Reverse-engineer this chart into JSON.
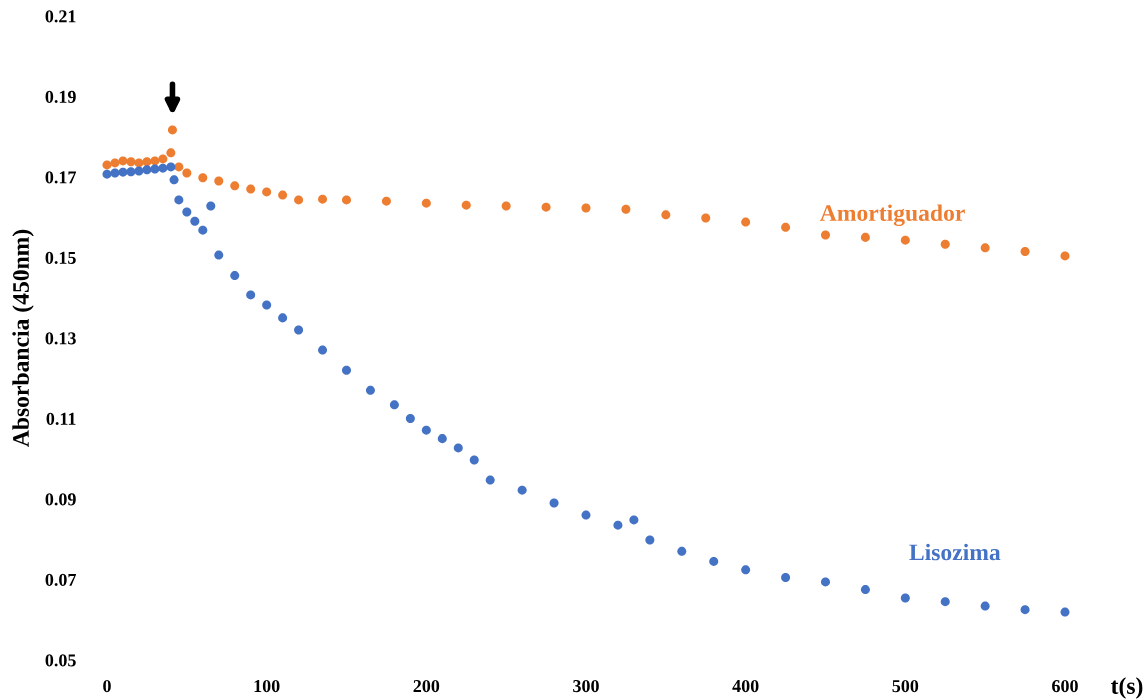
{
  "chart_data": {
    "type": "scatter",
    "xlabel": "t(s)",
    "ylabel": "Absorbancia (450nm)",
    "xlim": [
      0,
      600
    ],
    "xticks": [
      0,
      100,
      200,
      300,
      400,
      500,
      600
    ],
    "ylim": [
      0.05,
      0.21
    ],
    "yticks": [
      {
        "value": 0.05,
        "label": "0.05"
      },
      {
        "value": 0.07,
        "label": "0.07"
      },
      {
        "value": 0.09,
        "label": "0.09"
      },
      {
        "value": 0.11,
        "label": "0.11"
      },
      {
        "value": 0.13,
        "label": "0.13"
      },
      {
        "value": 0.15,
        "label": "0.15"
      },
      {
        "value": 0.17,
        "label": "0.17"
      },
      {
        "value": 0.19,
        "label": "0.19"
      },
      {
        "value": 0.21,
        "label": "0.21"
      }
    ],
    "grid": false,
    "legend": false,
    "marker": "circle",
    "series": [
      {
        "name": "Amortiguador",
        "color": "#ed7d31",
        "x": [
          0,
          5,
          10,
          15,
          20,
          25,
          30,
          35,
          40,
          41,
          45,
          50,
          60,
          70,
          80,
          90,
          100,
          110,
          120,
          135,
          150,
          175,
          200,
          225,
          250,
          275,
          300,
          325,
          350,
          375,
          400,
          425,
          450,
          475,
          500,
          525,
          550,
          575,
          600
        ],
        "values": [
          0.173,
          0.1735,
          0.174,
          0.1738,
          0.1735,
          0.1738,
          0.174,
          0.1745,
          0.176,
          0.1817,
          0.1725,
          0.171,
          0.1698,
          0.169,
          0.1678,
          0.167,
          0.1663,
          0.1655,
          0.1643,
          0.1645,
          0.1643,
          0.164,
          0.1635,
          0.163,
          0.1628,
          0.1625,
          0.1623,
          0.162,
          0.1606,
          0.1598,
          0.1588,
          0.1575,
          0.1556,
          0.155,
          0.1543,
          0.1533,
          0.1524,
          0.1515,
          0.1504
        ]
      },
      {
        "name": "Lisozima",
        "color": "#4472c4",
        "x": [
          0,
          5,
          10,
          15,
          20,
          25,
          30,
          35,
          40,
          42,
          45,
          50,
          55,
          60,
          65,
          70,
          80,
          90,
          100,
          110,
          120,
          135,
          150,
          165,
          180,
          190,
          200,
          210,
          220,
          230,
          240,
          260,
          280,
          300,
          320,
          330,
          340,
          360,
          380,
          400,
          425,
          450,
          475,
          500,
          525,
          550,
          575,
          600
        ],
        "values": [
          0.1707,
          0.171,
          0.1712,
          0.1713,
          0.1715,
          0.1718,
          0.172,
          0.1722,
          0.1725,
          0.1693,
          0.1643,
          0.1613,
          0.159,
          0.1568,
          0.1628,
          0.1506,
          0.1455,
          0.1407,
          0.1382,
          0.135,
          0.132,
          0.127,
          0.122,
          0.117,
          0.1134,
          0.11,
          0.1071,
          0.105,
          0.1027,
          0.0997,
          0.0947,
          0.0922,
          0.089,
          0.086,
          0.0835,
          0.0848,
          0.0798,
          0.077,
          0.0745,
          0.0724,
          0.0705,
          0.0694,
          0.0675,
          0.0654,
          0.0645,
          0.0634,
          0.0625,
          0.0619
        ]
      }
    ]
  }
}
